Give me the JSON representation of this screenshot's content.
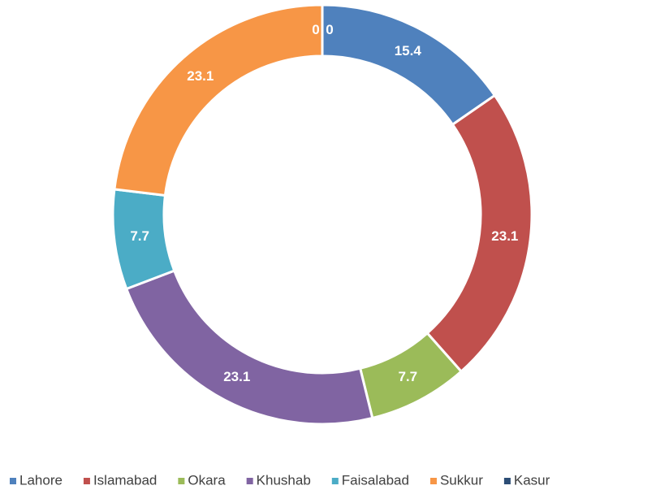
{
  "chart_data": {
    "type": "donut",
    "categories": [
      "Lahore",
      "Islamabad",
      "Okara",
      "Khushab",
      "Faisalabad",
      "Sukkur",
      "Kasur",
      null
    ],
    "values": [
      15.4,
      23.1,
      7.7,
      23.1,
      7.7,
      23.1,
      0,
      0
    ],
    "colors": [
      "#4f81bd",
      "#c0504d",
      "#9bbb59",
      "#8064a2",
      "#4bacc6",
      "#f79646",
      "#2c4d75",
      "#772c2a"
    ],
    "legend": "bottom"
  }
}
